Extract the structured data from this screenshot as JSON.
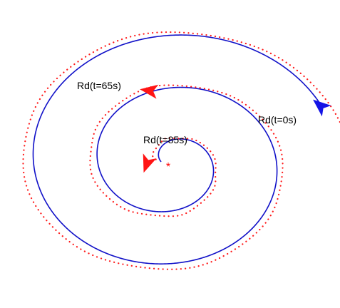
{
  "colors": {
    "desired_path": "#1010c8",
    "actual_path": "#ff1a1a",
    "current_vehicle": "#ff1414",
    "initial_vehicle": "#1414e6",
    "target": "#ff0000",
    "label_text": "#000000"
  },
  "labels": {
    "t0": "Rd(t=0s)",
    "t65": "Rd(t=65s)",
    "t85": "Rd(t=85s)"
  },
  "markers": {
    "target": "*",
    "t0": "arrowhead-icon",
    "t65": "arrowhead-icon",
    "t85": "arrowhead-icon"
  }
}
